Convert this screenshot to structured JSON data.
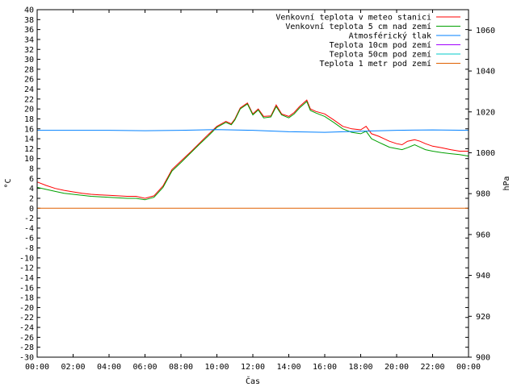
{
  "chart_data": {
    "type": "line",
    "xlabel": "Čas",
    "ylabel": "°C",
    "y2label": "hPa",
    "xlim": [
      0,
      24
    ],
    "ylim": [
      -30,
      40
    ],
    "y2lim": [
      900,
      1070
    ],
    "x_ticks": [
      "00:00",
      "02:00",
      "04:00",
      "06:00",
      "08:00",
      "10:00",
      "12:00",
      "14:00",
      "16:00",
      "18:00",
      "20:00",
      "22:00",
      "00:00"
    ],
    "y_ticks": [
      40,
      38,
      36,
      34,
      32,
      30,
      28,
      26,
      24,
      22,
      20,
      18,
      16,
      14,
      12,
      10,
      8,
      6,
      4,
      2,
      0,
      -2,
      -4,
      -6,
      -8,
      -10,
      -12,
      -14,
      -16,
      -18,
      -20,
      -22,
      -24,
      -26,
      -28,
      -30
    ],
    "y2_ticks": [
      1060,
      1040,
      1020,
      1000,
      980,
      960,
      940,
      920,
      900
    ],
    "legend_position": "top-right",
    "grid": false,
    "series": [
      {
        "name": "Venkovní teplota v meteo stanici",
        "color": "#ff0000",
        "axis": "left",
        "x": [
          0,
          0.5,
          1,
          1.5,
          2,
          2.5,
          3,
          3.5,
          4,
          4.5,
          5,
          5.5,
          6,
          6.5,
          7,
          7.5,
          8,
          8.5,
          9,
          9.5,
          10,
          10.5,
          10.8,
          11,
          11.3,
          11.7,
          12,
          12.3,
          12.6,
          13,
          13.3,
          13.6,
          14,
          14.3,
          14.6,
          15,
          15.2,
          15.5,
          16,
          16.5,
          17,
          17.5,
          18,
          18.3,
          18.6,
          19,
          19.3,
          19.6,
          20,
          20.3,
          20.6,
          21,
          21.3,
          21.6,
          22,
          22.5,
          23,
          23.5,
          24
        ],
        "values": [
          5.3,
          4.6,
          4.0,
          3.6,
          3.3,
          3.0,
          2.8,
          2.7,
          2.6,
          2.5,
          2.4,
          2.4,
          2.0,
          2.5,
          4.5,
          7.8,
          9.5,
          11.2,
          13.0,
          14.8,
          16.5,
          17.5,
          17.0,
          18.0,
          20.2,
          21.2,
          19.0,
          20.0,
          18.5,
          18.6,
          20.8,
          19.0,
          18.5,
          19.3,
          20.5,
          21.8,
          20.0,
          19.5,
          19.0,
          17.8,
          16.5,
          16.0,
          15.8,
          16.5,
          15.0,
          14.5,
          14.0,
          13.5,
          13.0,
          12.8,
          13.5,
          13.8,
          13.5,
          13.0,
          12.5,
          12.2,
          11.8,
          11.5,
          11.5
        ]
      },
      {
        "name": "Venkovní teplota 5 cm nad zemí",
        "color": "#00a000",
        "axis": "left",
        "x": [
          0,
          0.5,
          1,
          1.5,
          2,
          2.5,
          3,
          3.5,
          4,
          4.5,
          5,
          5.5,
          6,
          6.5,
          7,
          7.5,
          8,
          8.5,
          9,
          9.5,
          10,
          10.5,
          10.8,
          11,
          11.3,
          11.7,
          12,
          12.3,
          12.6,
          13,
          13.3,
          13.6,
          14,
          14.3,
          14.6,
          15,
          15.2,
          15.5,
          16,
          16.5,
          17,
          17.5,
          18,
          18.3,
          18.6,
          19,
          19.3,
          19.6,
          20,
          20.3,
          20.6,
          21,
          21.3,
          21.6,
          22,
          22.5,
          23,
          23.5,
          24
        ],
        "values": [
          4.2,
          3.8,
          3.4,
          3.0,
          2.8,
          2.6,
          2.4,
          2.3,
          2.2,
          2.1,
          2.0,
          2.0,
          1.7,
          2.2,
          4.2,
          7.5,
          9.2,
          11.0,
          12.8,
          14.5,
          16.3,
          17.3,
          16.8,
          17.8,
          20.0,
          21.0,
          18.8,
          19.8,
          18.2,
          18.4,
          20.5,
          18.8,
          18.2,
          19.0,
          20.2,
          21.5,
          19.7,
          19.2,
          18.5,
          17.3,
          16.0,
          15.3,
          15.0,
          15.5,
          14.0,
          13.3,
          12.8,
          12.3,
          12.0,
          11.8,
          12.2,
          12.8,
          12.3,
          11.8,
          11.5,
          11.2,
          11.0,
          10.8,
          10.5
        ]
      },
      {
        "name": "Atmosférický tlak",
        "color": "#0080ff",
        "axis": "right",
        "x": [
          0,
          2,
          4,
          6,
          8,
          10,
          12,
          14,
          16,
          18,
          20,
          22,
          24
        ],
        "values": [
          1011,
          1011,
          1011,
          1010.8,
          1011,
          1011.3,
          1011,
          1010.3,
          1010,
          1010.5,
          1011,
          1011.2,
          1011
        ]
      },
      {
        "name": "Teplota 10cm pod zemí",
        "color": "#a000ff",
        "axis": "left",
        "x": [],
        "values": []
      },
      {
        "name": "Teplota 50cm pod zemí",
        "color": "#00c8c8",
        "axis": "left",
        "x": [],
        "values": []
      },
      {
        "name": "Teplota 1 metr pod zemí",
        "color": "#e06000",
        "axis": "left",
        "x": [
          0,
          24
        ],
        "values": [
          0,
          0
        ]
      }
    ]
  }
}
